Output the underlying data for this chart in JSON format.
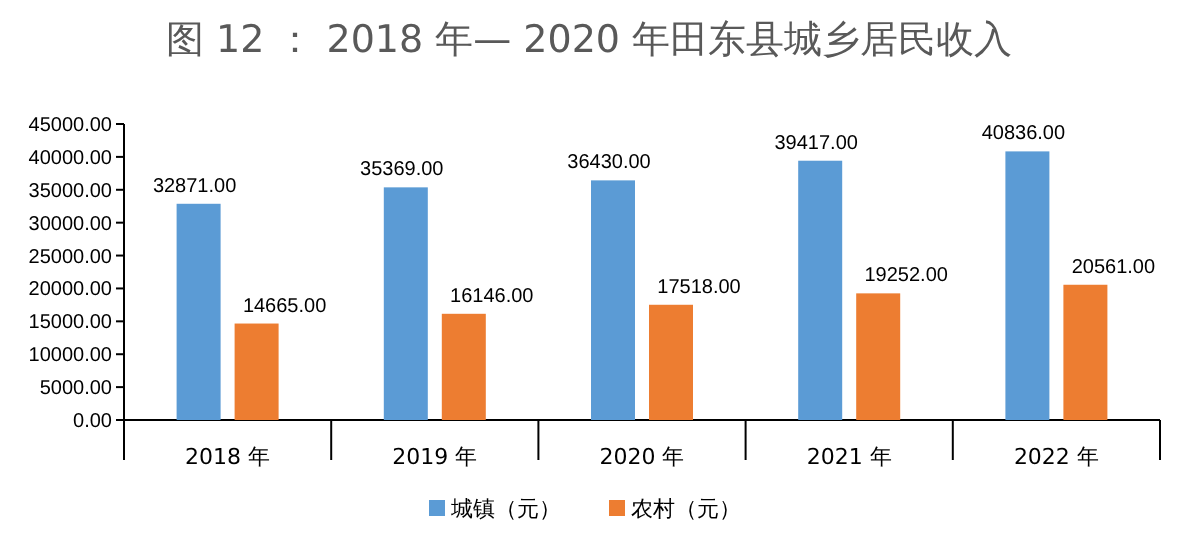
{
  "chart_data": {
    "type": "bar",
    "title": "图 12 ： 2018 年— 2020 年田东县城乡居民收入",
    "categories": [
      "2018 年",
      "2019 年",
      "2020 年",
      "2021 年",
      "2022 年"
    ],
    "series": [
      {
        "name": "城镇（元）",
        "color": "#5b9bd5",
        "values": [
          32871,
          35369,
          36430,
          39417,
          40836
        ],
        "value_labels": [
          "32871.00",
          "35369.00",
          "36430.00",
          "39417.00",
          "40836.00"
        ]
      },
      {
        "name": "农村（元）",
        "color": "#ed7d31",
        "values": [
          14665,
          16146,
          17518,
          19252,
          20561
        ],
        "value_labels": [
          "14665.00",
          "16146.00",
          "17518.00",
          "19252.00",
          "20561.00"
        ]
      }
    ],
    "ylim": [
      0,
      45000
    ],
    "yticks": [
      {
        "value": 0,
        "label": "0.00"
      },
      {
        "value": 5000,
        "label": "5000.00"
      },
      {
        "value": 10000,
        "label": "10000.00"
      },
      {
        "value": 15000,
        "label": "15000.00"
      },
      {
        "value": 20000,
        "label": "20000.00"
      },
      {
        "value": 25000,
        "label": "25000.00"
      },
      {
        "value": 30000,
        "label": "30000.00"
      },
      {
        "value": 35000,
        "label": "35000.00"
      },
      {
        "value": 40000,
        "label": "40000.00"
      },
      {
        "value": 45000,
        "label": "45000.00"
      }
    ],
    "grid": false,
    "legend": "bottom"
  }
}
